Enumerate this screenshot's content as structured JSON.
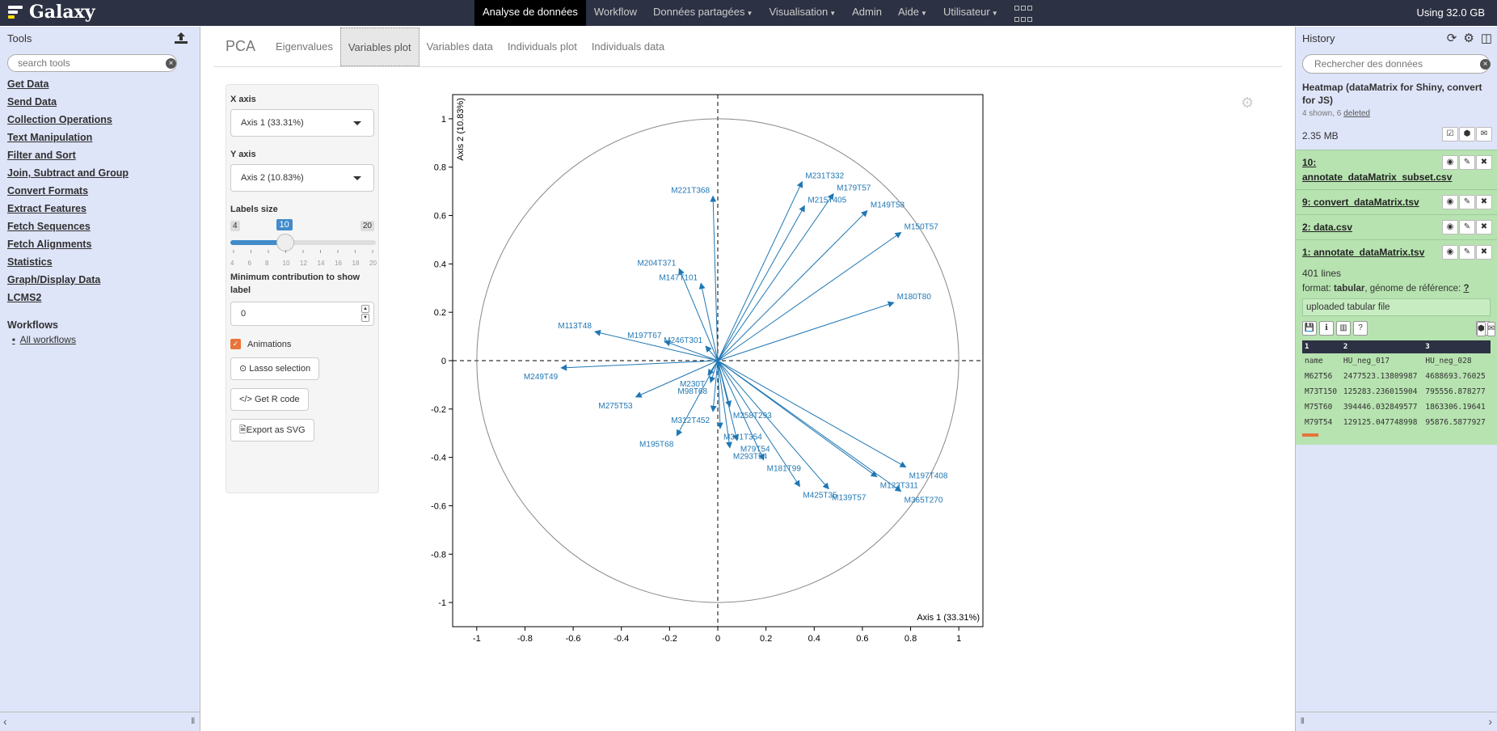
{
  "masthead": {
    "brand": "Galaxy",
    "nav": [
      {
        "label": "Analyse de données",
        "caret": false,
        "active": true
      },
      {
        "label": "Workflow",
        "caret": false
      },
      {
        "label": "Données partagées",
        "caret": true
      },
      {
        "label": "Visualisation",
        "caret": true
      },
      {
        "label": "Admin",
        "caret": false
      },
      {
        "label": "Aide",
        "caret": true
      },
      {
        "label": "Utilisateur",
        "caret": true
      }
    ],
    "quota": "Using 32.0 GB"
  },
  "tools": {
    "title": "Tools",
    "search_placeholder": "search tools",
    "sections": [
      "Get Data",
      "Send Data",
      "Collection Operations",
      "Text Manipulation",
      "Filter and Sort",
      "Join, Subtract and Group",
      "Convert Formats",
      "Extract Features",
      "Fetch Sequences",
      "Fetch Alignments",
      "Statistics",
      "Graph/Display Data",
      "LCMS2"
    ],
    "workflows_title": "Workflows",
    "workflows_link": "All workflows"
  },
  "pca": {
    "title": "PCA",
    "tabs": [
      "Eigenvalues",
      "Variables plot",
      "Variables data",
      "Individuals plot",
      "Individuals data"
    ],
    "active_tab": 1,
    "x_axis_label": "X axis",
    "x_axis_value": "Axis 1 (33.31%)",
    "y_axis_label": "Y axis",
    "y_axis_value": "Axis 2 (10.83%)",
    "labels_size_label": "Labels size",
    "labels_size_min": "4",
    "labels_size_max": "20",
    "labels_size_value": "10",
    "labels_size_fraction": 0.375,
    "slider_ticks": [
      "4",
      "6",
      "8",
      "10",
      "12",
      "14",
      "16",
      "18",
      "20"
    ],
    "min_contrib_label": "Minimum contribution to show label",
    "min_contrib_value": "0",
    "animations_label": "Animations",
    "animations_checked": true,
    "lasso_label": "Lasso selection",
    "r_code_label": "Get R code",
    "svg_label": "Export as SVG"
  },
  "chart_data": {
    "type": "scatter",
    "title": "",
    "xlabel": "Axis 1 (33.31%)",
    "ylabel": "Axis 2 (10.83%)",
    "xlim": [
      -1.1,
      1.1
    ],
    "ylim": [
      -1.1,
      1.1
    ],
    "xticks": [
      -1,
      -0.8,
      -0.6,
      -0.4,
      -0.2,
      0,
      0.2,
      0.4,
      0.6,
      0.8,
      1
    ],
    "yticks": [
      -1,
      -0.8,
      -0.6,
      -0.4,
      -0.2,
      0,
      0.2,
      0.4,
      0.6,
      0.8,
      1
    ],
    "unit_circle": true,
    "arrow_color": "#1f77b4",
    "variables": [
      {
        "name": "M249T49",
        "x": -0.65,
        "y": -0.03
      },
      {
        "name": "M113T48",
        "x": -0.51,
        "y": 0.12
      },
      {
        "name": "M275T53",
        "x": -0.34,
        "y": -0.15
      },
      {
        "name": "M195T68",
        "x": -0.17,
        "y": -0.31
      },
      {
        "name": "M197T67",
        "x": -0.22,
        "y": 0.08
      },
      {
        "name": "M204T371",
        "x": -0.16,
        "y": 0.38
      },
      {
        "name": "M147T101",
        "x": -0.07,
        "y": 0.32
      },
      {
        "name": "M246T301",
        "x": -0.05,
        "y": 0.06
      },
      {
        "name": "M230T",
        "x": -0.04,
        "y": -0.06
      },
      {
        "name": "M98T68",
        "x": -0.03,
        "y": -0.09
      },
      {
        "name": "M312T452",
        "x": -0.02,
        "y": -0.21
      },
      {
        "name": "M341T354",
        "x": 0.01,
        "y": -0.28
      },
      {
        "name": "M293T54",
        "x": 0.05,
        "y": -0.36
      },
      {
        "name": "M221T368",
        "x": -0.02,
        "y": 0.68
      },
      {
        "name": "M231T332",
        "x": 0.35,
        "y": 0.74
      },
      {
        "name": "M179T57",
        "x": 0.48,
        "y": 0.69
      },
      {
        "name": "M149T58",
        "x": 0.62,
        "y": 0.62
      },
      {
        "name": "M150T57",
        "x": 0.76,
        "y": 0.53
      },
      {
        "name": "M215T405",
        "x": 0.36,
        "y": 0.64
      },
      {
        "name": "M425T35",
        "x": 0.34,
        "y": -0.52
      },
      {
        "name": "M139T57",
        "x": 0.46,
        "y": -0.53
      },
      {
        "name": "M123T311",
        "x": 0.66,
        "y": -0.48
      },
      {
        "name": "M365T270",
        "x": 0.76,
        "y": -0.54
      },
      {
        "name": "M197T408",
        "x": 0.78,
        "y": -0.44
      },
      {
        "name": "M180T80",
        "x": 0.73,
        "y": 0.24
      },
      {
        "name": "M258T293",
        "x": 0.05,
        "y": -0.19
      },
      {
        "name": "M79T54",
        "x": 0.08,
        "y": -0.33
      },
      {
        "name": "M181T99",
        "x": 0.19,
        "y": -0.41
      }
    ]
  },
  "history": {
    "title": "History",
    "search_placeholder": "Rechercher des données",
    "name": "Heatmap (dataMatrix for Shiny, convert for JS)",
    "shown": "4 shown, 6 ",
    "deleted": "deleted",
    "size": "2.35 MB",
    "datasets": [
      {
        "title": "10: annotate_dataMatrix_subset.csv"
      },
      {
        "title": "9: convert_dataMatrix.tsv"
      },
      {
        "title": "2: data.csv"
      },
      {
        "title": "1: annotate_dataMatrix.tsv"
      }
    ],
    "expanded": {
      "lines": "401 lines",
      "format_label": "format: ",
      "format": "tabular",
      "genome_label": ", génome de référence: ",
      "genome": "?",
      "info": "uploaded tabular file",
      "peek_headers": [
        "1",
        "2",
        "3"
      ],
      "peek_rows": [
        [
          "name",
          "HU_neg_017",
          "HU_neg_028"
        ],
        [
          "M62T56",
          "2477523.13809987",
          "4688693.76025"
        ],
        [
          "M73T150",
          "125283.236015904",
          "795556.878277"
        ],
        [
          "M75T60",
          "394446.032849577",
          "1863306.19641"
        ],
        [
          "M79T54",
          "129125.047748998",
          "95876.5877927"
        ]
      ]
    }
  }
}
